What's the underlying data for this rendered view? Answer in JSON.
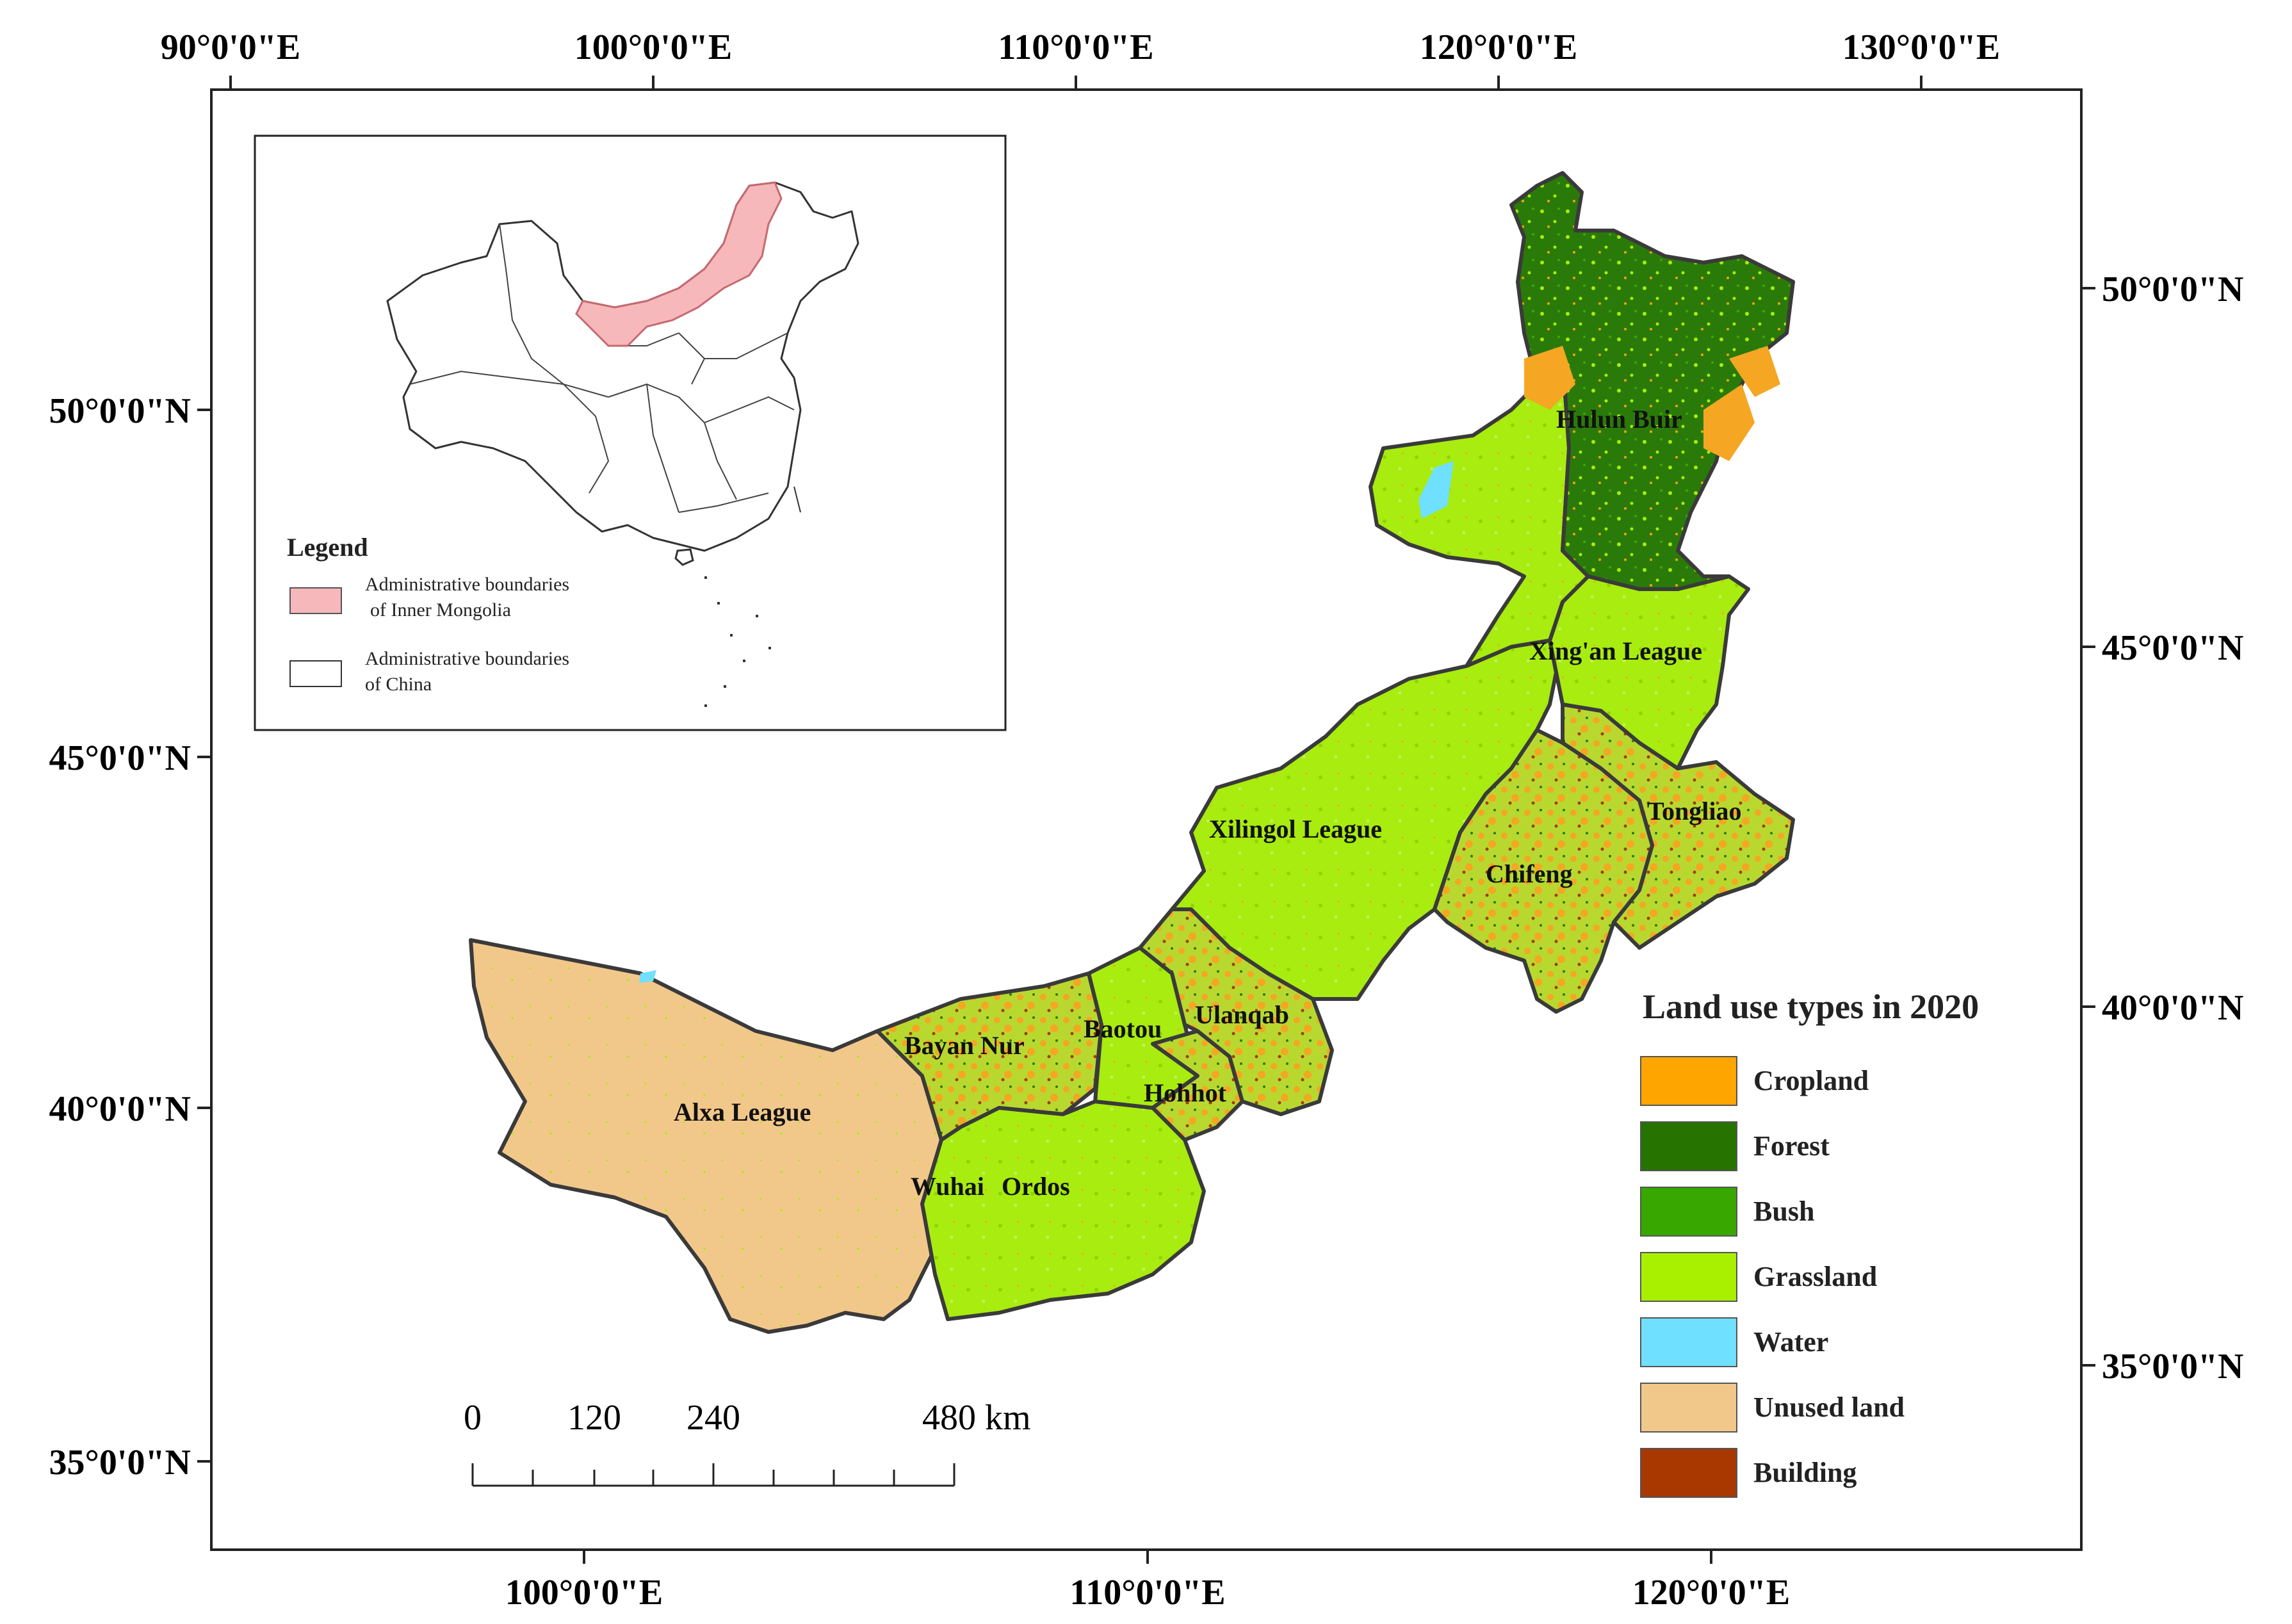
{
  "axes": {
    "top_labels": [
      "90°0'0\"E",
      "100°0'0\"E",
      "110°0'0\"E",
      "120°0'0\"E",
      "130°0'0\"E"
    ],
    "bottom_labels": [
      "100°0'0\"E",
      "110°0'0\"E",
      "120°0'0\"E"
    ],
    "left_labels": [
      "50°0'0\"N",
      "45°0'0\"N",
      "40°0'0\"N",
      "35°0'0\"N"
    ],
    "right_labels": [
      "50°0'0\"N",
      "45°0'0\"N",
      "40°0'0\"N",
      "35°0'0\"N"
    ]
  },
  "regions": [
    "Hulun Buir",
    "Xing'an League",
    "Tongliao",
    "Chifeng",
    "Xilingol League",
    "Ulanqab",
    "Baotou",
    "Hohhot",
    "Bayan Nur",
    "Alxa League",
    "Wuhai",
    "Ordos"
  ],
  "inset": {
    "legend_title": "Legend",
    "items": [
      {
        "line1": "Administrative boundaries",
        "line2": "of Inner Mongolia",
        "color": "#f7b8bb"
      },
      {
        "line1": "Administrative boundaries",
        "line2": "of China",
        "color": "#ffffff"
      }
    ]
  },
  "land_legend": {
    "title": "Land use types in 2020",
    "items": [
      {
        "label": "Cropland",
        "color": "#ffa500"
      },
      {
        "label": "Forest",
        "color": "#267300"
      },
      {
        "label": "Bush",
        "color": "#38a800"
      },
      {
        "label": "Grassland",
        "color": "#a8f000"
      },
      {
        "label": "Water",
        "color": "#6fe0ff"
      },
      {
        "label": "Unused land",
        "color": "#f2c88a"
      },
      {
        "label": "Building",
        "color": "#a83800"
      }
    ]
  },
  "scale_bar": {
    "labels": [
      "0",
      "120",
      "240",
      "480 km"
    ]
  }
}
